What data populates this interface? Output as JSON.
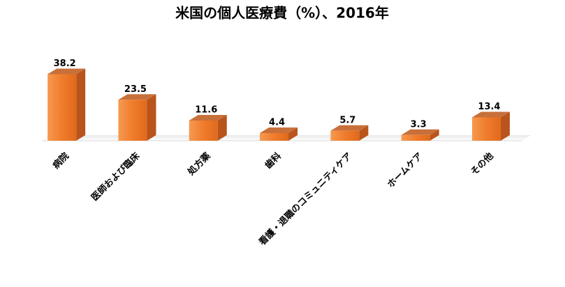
{
  "chart_data": {
    "type": "bar3d",
    "title": "米国の個人医療費（%）、2016年",
    "categories": [
      "病院",
      "医師および臨床",
      "処方薬",
      "歯科",
      "看護・退職のコミュニティケア",
      "ホームケア",
      "その他"
    ],
    "values": [
      38.2,
      23.5,
      11.6,
      4.4,
      5.7,
      3.3,
      13.4
    ],
    "color": "#f07c2c"
  }
}
